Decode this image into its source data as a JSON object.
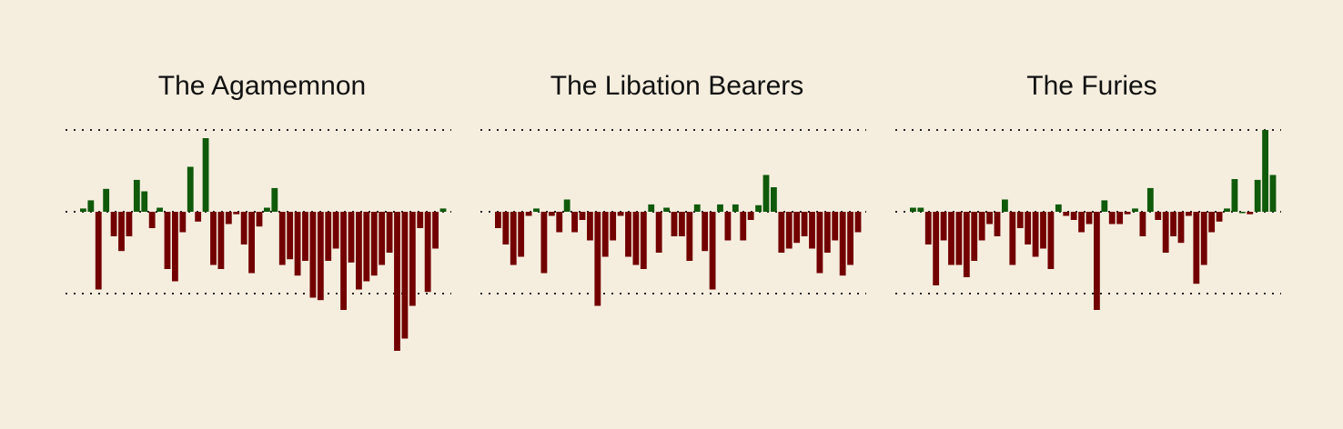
{
  "colors": {
    "background": "#f5eedf",
    "positive": "#0f5a0b",
    "negative": "#720000",
    "guides": "#222222"
  },
  "chart_data": [
    {
      "type": "bar",
      "title": "The Agamemnon",
      "ylim": [
        -1.7,
        1.0
      ],
      "reference_lines": [
        -1,
        0,
        1
      ],
      "values": [
        0.04,
        0.14,
        -0.95,
        0.28,
        -0.3,
        -0.48,
        -0.3,
        0.39,
        0.25,
        -0.2,
        0.05,
        -0.7,
        -0.85,
        -0.25,
        0.55,
        -0.12,
        0.9,
        -0.65,
        -0.7,
        -0.15,
        -0.03,
        -0.4,
        -0.75,
        -0.18,
        0.05,
        0.29,
        -0.65,
        -0.58,
        -0.78,
        -0.6,
        -1.05,
        -1.08,
        -0.6,
        -0.45,
        -1.2,
        -0.62,
        -0.95,
        -0.85,
        -0.78,
        -0.65,
        -0.5,
        -1.7,
        -1.55,
        -1.15,
        -0.2,
        -0.98,
        -0.45,
        0.04
      ]
    },
    {
      "type": "bar",
      "title": "The Libation Bearers",
      "ylim": [
        -1.7,
        1.0
      ],
      "reference_lines": [
        -1,
        0,
        1
      ],
      "values": [
        -0.2,
        -0.4,
        -0.65,
        -0.55,
        -0.05,
        0.04,
        -0.75,
        -0.05,
        -0.25,
        0.15,
        -0.25,
        -0.1,
        -0.35,
        -1.15,
        -0.55,
        -0.35,
        -0.05,
        -0.55,
        -0.65,
        -0.7,
        0.09,
        -0.5,
        0.05,
        -0.3,
        -0.3,
        -0.6,
        0.09,
        -0.48,
        -0.95,
        0.09,
        -0.35,
        0.09,
        -0.35,
        -0.1,
        0.08,
        0.45,
        0.3,
        -0.5,
        -0.45,
        -0.38,
        -0.3,
        -0.45,
        -0.75,
        -0.5,
        -0.35,
        -0.78,
        -0.65,
        -0.25
      ]
    },
    {
      "type": "bar",
      "title": "The Furies",
      "ylim": [
        -1.7,
        1.0
      ],
      "reference_lines": [
        -1,
        0,
        1
      ],
      "values": [
        0.05,
        0.05,
        -0.4,
        -0.9,
        -0.35,
        -0.65,
        -0.65,
        -0.8,
        -0.6,
        -0.35,
        -0.15,
        -0.3,
        0.15,
        -0.65,
        -0.2,
        -0.4,
        -0.55,
        -0.45,
        -0.7,
        0.09,
        -0.05,
        -0.1,
        -0.25,
        -0.15,
        -1.2,
        0.14,
        -0.15,
        -0.15,
        -0.03,
        0.04,
        -0.3,
        0.29,
        -0.1,
        -0.5,
        -0.3,
        -0.38,
        -0.05,
        -0.88,
        -0.65,
        -0.25,
        -0.12,
        0.04,
        0.4,
        0.0,
        -0.03,
        0.39,
        1.0,
        0.45
      ]
    }
  ]
}
